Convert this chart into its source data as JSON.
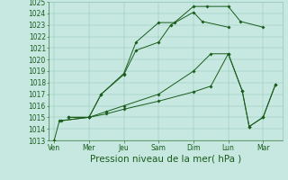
{
  "x_labels": [
    "Ven",
    "Mer",
    "Jeu",
    "Sam",
    "Dim",
    "Lun",
    "Mar"
  ],
  "series": [
    {
      "name": "line1_steep",
      "x": [
        0.0,
        0.15,
        1.0,
        1.35,
        2.0,
        2.35,
        3.0,
        3.35,
        4.0,
        4.25,
        5.0
      ],
      "y": [
        1013.0,
        1014.7,
        1015.0,
        1017.0,
        1018.7,
        1020.8,
        1021.5,
        1023.0,
        1024.1,
        1023.3,
        1022.8
      ]
    },
    {
      "name": "line2_peak",
      "x": [
        0.2,
        1.0,
        1.35,
        2.0,
        2.35,
        3.0,
        3.45,
        4.0,
        4.4,
        5.0,
        5.35,
        6.0
      ],
      "y": [
        1014.7,
        1015.0,
        1017.0,
        1018.8,
        1021.5,
        1023.2,
        1023.2,
        1024.6,
        1024.6,
        1024.6,
        1023.3,
        1022.8
      ]
    },
    {
      "name": "line3_flat_drop",
      "x": [
        0.4,
        1.0,
        1.5,
        2.0,
        3.0,
        4.0,
        4.5,
        5.0,
        5.4,
        5.6,
        6.0,
        6.35
      ],
      "y": [
        1015.0,
        1015.0,
        1015.5,
        1016.0,
        1017.0,
        1019.0,
        1020.5,
        1020.5,
        1017.3,
        1014.2,
        1015.0,
        1017.8
      ]
    },
    {
      "name": "line4_flattest",
      "x": [
        0.4,
        1.0,
        1.5,
        2.0,
        3.0,
        4.0,
        4.5,
        5.0,
        5.4,
        5.6,
        6.0,
        6.35
      ],
      "y": [
        1015.0,
        1015.0,
        1015.3,
        1015.7,
        1016.4,
        1017.2,
        1017.7,
        1020.5,
        1017.3,
        1014.2,
        1015.0,
        1017.8
      ]
    }
  ],
  "yticks": [
    1013,
    1014,
    1015,
    1016,
    1017,
    1018,
    1019,
    1020,
    1021,
    1022,
    1023,
    1024,
    1025
  ],
  "ylim": [
    1013,
    1025
  ],
  "xlim": [
    -0.15,
    6.55
  ],
  "xtick_positions": [
    0,
    1,
    2,
    3,
    4,
    5,
    6
  ],
  "line_color": "#1a5c1a",
  "bg_color": "#c6e8e1",
  "grid_color": "#88bfb0",
  "xlabel": "Pression niveau de la mer( hPa )",
  "xlabel_fontsize": 7.5,
  "tick_fontsize": 5.5,
  "linewidth": 0.7,
  "marker": "D",
  "marker_size": 1.8
}
